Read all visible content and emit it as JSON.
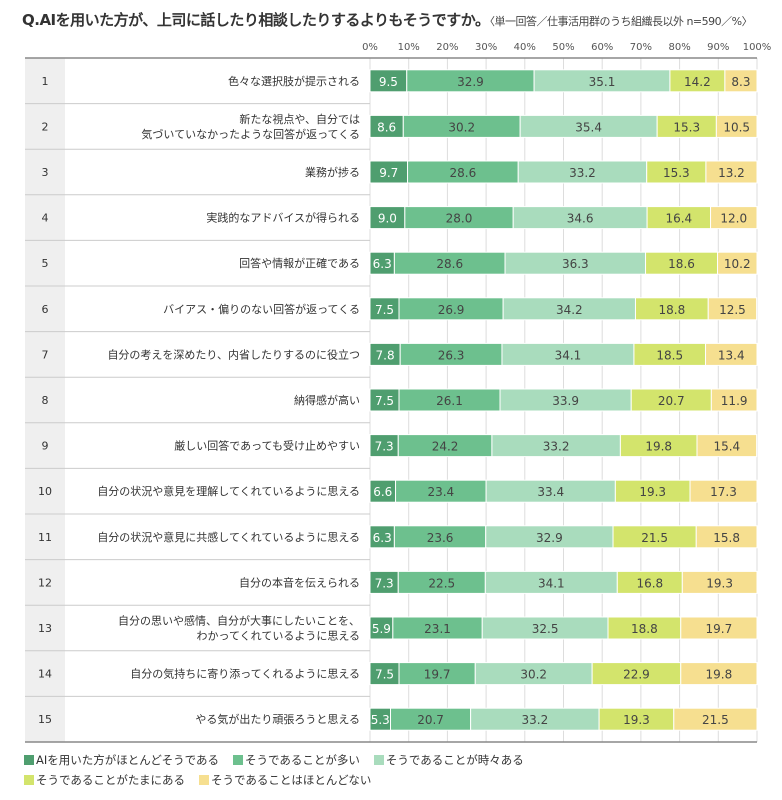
{
  "chart_data": {
    "type": "bar",
    "orientation": "horizontal-stacked-100",
    "title": "Q.AIを用いた方が、上司に話したり相談したりするよりもそうですか。",
    "subtitle": "〈単一回答／仕事活用群のうち組織長以外 n=590／%〉",
    "xlim": [
      0,
      100
    ],
    "xticks": [
      "0%",
      "10%",
      "20%",
      "30%",
      "40%",
      "50%",
      "60%",
      "70%",
      "80%",
      "90%",
      "100%"
    ],
    "grid": true,
    "legend_position": "bottom",
    "categories": [
      {
        "no": "1",
        "label": "色々な選択肢が提示される"
      },
      {
        "no": "2",
        "label": "新たな視点や、自分では\n気づいていなかったような回答が返ってくる"
      },
      {
        "no": "3",
        "label": "業務が捗る"
      },
      {
        "no": "4",
        "label": "実践的なアドバイスが得られる"
      },
      {
        "no": "5",
        "label": "回答や情報が正確である"
      },
      {
        "no": "6",
        "label": "バイアス・偏りのない回答が返ってくる"
      },
      {
        "no": "7",
        "label": "自分の考えを深めたり、内省したりするのに役立つ"
      },
      {
        "no": "8",
        "label": "納得感が高い"
      },
      {
        "no": "9",
        "label": "厳しい回答であっても受け止めやすい"
      },
      {
        "no": "10",
        "label": "自分の状況や意見を理解してくれているように思える"
      },
      {
        "no": "11",
        "label": "自分の状況や意見に共感してくれているように思える"
      },
      {
        "no": "12",
        "label": "自分の本音を伝えられる"
      },
      {
        "no": "13",
        "label": "自分の思いや感情、自分が大事にしたいことを、\nわかってくれているように思える"
      },
      {
        "no": "14",
        "label": "自分の気持ちに寄り添ってくれるように思える"
      },
      {
        "no": "15",
        "label": "やる気が出たり頑張ろうと思える"
      }
    ],
    "series": [
      {
        "name": "AIを用いた方がほとんどそうである",
        "color": "#4f9e6f",
        "values": [
          9.5,
          8.6,
          9.7,
          9.0,
          6.3,
          7.5,
          7.8,
          7.5,
          7.3,
          6.6,
          6.3,
          7.3,
          5.9,
          7.5,
          5.3
        ]
      },
      {
        "name": "そうであることが多い",
        "color": "#6dc08e",
        "values": [
          32.9,
          30.2,
          28.6,
          28.0,
          28.6,
          26.9,
          26.3,
          26.1,
          24.2,
          23.4,
          23.6,
          22.5,
          23.1,
          19.7,
          20.7
        ]
      },
      {
        "name": "そうであることが時々ある",
        "color": "#a9dcbd",
        "values": [
          35.1,
          35.4,
          33.2,
          34.6,
          36.3,
          34.2,
          34.1,
          33.9,
          33.2,
          33.4,
          32.9,
          34.1,
          32.5,
          30.2,
          33.2
        ]
      },
      {
        "name": "そうであることがたまにある",
        "color": "#d3e46c",
        "values": [
          14.2,
          15.3,
          15.3,
          16.4,
          18.6,
          18.8,
          18.5,
          20.7,
          19.8,
          19.3,
          21.5,
          16.8,
          18.8,
          22.9,
          19.3
        ]
      },
      {
        "name": "そうであることはほとんどない",
        "color": "#f6df90",
        "values": [
          8.3,
          10.5,
          13.2,
          12.0,
          10.2,
          12.5,
          13.4,
          11.9,
          15.4,
          17.3,
          15.8,
          19.3,
          19.7,
          19.8,
          21.5
        ]
      }
    ]
  }
}
